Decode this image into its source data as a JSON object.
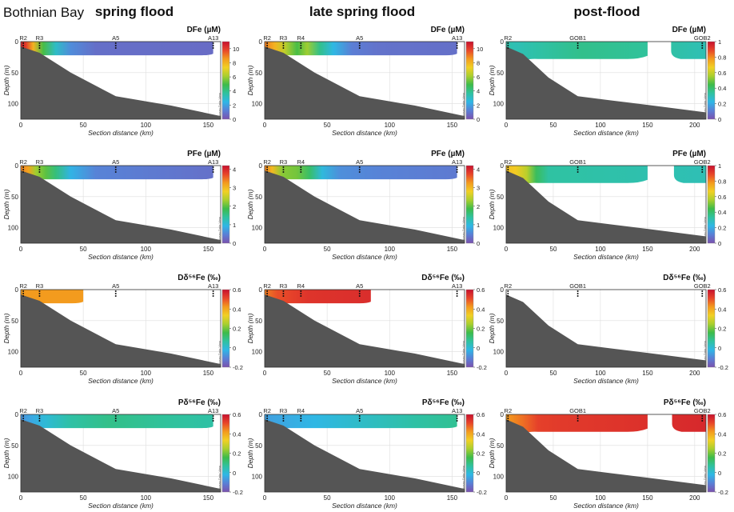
{
  "header": {
    "region": "Bothnian Bay",
    "columns": [
      "spring flood",
      "late spring flood",
      "post-flood"
    ]
  },
  "common": {
    "xlabel": "Section distance (km)",
    "ylabel": "Depth (m)",
    "watermark": "Ocean Data View"
  },
  "colors": {
    "colormap": [
      "#7b52ae",
      "#5a7fd6",
      "#2fb7e6",
      "#2fc2a0",
      "#3dbb4a",
      "#a9cf2e",
      "#f2d024",
      "#f39a1e",
      "#e8452a",
      "#c8102e"
    ],
    "seafloor": "#555555",
    "frame": "#333333",
    "grid": "#dddddd"
  },
  "chart_data": [
    {
      "type": "heatmap",
      "panel": "spring-DFe",
      "title": "DFe (µM)",
      "xlim": [
        0,
        160
      ],
      "ylim": [
        0,
        125
      ],
      "xticks": [
        0,
        50,
        100,
        150
      ],
      "yticks": [
        0,
        50,
        100
      ],
      "stations": [
        {
          "name": "R2",
          "x": 2
        },
        {
          "name": "R3",
          "x": 15
        },
        {
          "name": "A5",
          "x": 76
        },
        {
          "name": "A13",
          "x": 154
        }
      ],
      "colorbar": {
        "min": 0,
        "max": 11,
        "ticks": [
          0,
          2,
          4,
          6,
          8,
          10
        ]
      },
      "seafloor": [
        [
          0,
          8
        ],
        [
          15,
          18
        ],
        [
          40,
          50
        ],
        [
          76,
          88
        ],
        [
          120,
          103
        ],
        [
          160,
          120
        ]
      ],
      "surface_layer": {
        "depth": 22,
        "x_end": 154
      },
      "gradient": [
        [
          0,
          10.5
        ],
        [
          4,
          10
        ],
        [
          10,
          8
        ],
        [
          18,
          5
        ],
        [
          28,
          3
        ],
        [
          40,
          1.5
        ],
        [
          60,
          0.8
        ],
        [
          160,
          0.7
        ]
      ]
    },
    {
      "type": "heatmap",
      "panel": "late-DFe",
      "title": "DFe (µM)",
      "xlim": [
        0,
        160
      ],
      "ylim": [
        0,
        125
      ],
      "xticks": [
        0,
        50,
        100,
        150
      ],
      "yticks": [
        0,
        50,
        100
      ],
      "stations": [
        {
          "name": "R2",
          "x": 2
        },
        {
          "name": "R3",
          "x": 15
        },
        {
          "name": "R4",
          "x": 29
        },
        {
          "name": "A5",
          "x": 76
        },
        {
          "name": "A13",
          "x": 154
        }
      ],
      "colorbar": {
        "min": 0,
        "max": 11,
        "ticks": [
          0,
          2,
          4,
          6,
          8,
          10
        ]
      },
      "seafloor": [
        [
          0,
          8
        ],
        [
          15,
          18
        ],
        [
          40,
          50
        ],
        [
          76,
          88
        ],
        [
          120,
          103
        ],
        [
          160,
          120
        ]
      ],
      "surface_layer": {
        "depth": 22,
        "x_end": 154
      },
      "gradient": [
        [
          0,
          9
        ],
        [
          8,
          8
        ],
        [
          16,
          6.5
        ],
        [
          26,
          5
        ],
        [
          34,
          6
        ],
        [
          44,
          4
        ],
        [
          55,
          2.5
        ],
        [
          70,
          1.2
        ],
        [
          90,
          0.9
        ],
        [
          160,
          0.8
        ]
      ]
    },
    {
      "type": "heatmap",
      "panel": "post-DFe",
      "title": "DFe (µM)",
      "xlim": [
        0,
        212
      ],
      "ylim": [
        0,
        125
      ],
      "xticks": [
        0,
        50,
        100,
        150,
        200
      ],
      "yticks": [
        0,
        50,
        100
      ],
      "stations": [
        {
          "name": "R2",
          "x": 2
        },
        {
          "name": "GOB1",
          "x": 76
        },
        {
          "name": "GOB2",
          "x": 208
        }
      ],
      "colorbar": {
        "min": 0,
        "max": 1,
        "ticks": [
          0,
          0.2,
          0.4,
          0.6,
          0.8,
          1.0
        ]
      },
      "seafloor": [
        [
          0,
          8
        ],
        [
          18,
          20
        ],
        [
          45,
          58
        ],
        [
          76,
          88
        ],
        [
          150,
          102
        ],
        [
          212,
          114
        ]
      ],
      "surface_layer": {
        "depth": 28,
        "gap": [
          150,
          175
        ],
        "x_end": 212
      },
      "gradient": [
        [
          0,
          0.32
        ],
        [
          10,
          0.3
        ],
        [
          30,
          0.32
        ],
        [
          80,
          0.36
        ],
        [
          150,
          0.34
        ],
        [
          212,
          0.3
        ]
      ]
    },
    {
      "type": "heatmap",
      "panel": "spring-PFe",
      "title": "PFe (µM)",
      "xlim": [
        0,
        160
      ],
      "ylim": [
        0,
        125
      ],
      "xticks": [
        0,
        50,
        100,
        150
      ],
      "yticks": [
        0,
        50,
        100
      ],
      "stations": [
        {
          "name": "R2",
          "x": 2
        },
        {
          "name": "R3",
          "x": 15
        },
        {
          "name": "A5",
          "x": 76
        },
        {
          "name": "A13",
          "x": 154
        }
      ],
      "colorbar": {
        "min": 0,
        "max": 4.2,
        "ticks": [
          0,
          1,
          2,
          3,
          4
        ]
      },
      "seafloor": [
        [
          0,
          8
        ],
        [
          15,
          18
        ],
        [
          40,
          50
        ],
        [
          76,
          88
        ],
        [
          120,
          103
        ],
        [
          160,
          120
        ]
      ],
      "surface_layer": {
        "depth": 22,
        "x_end": 154
      },
      "gradient": [
        [
          0,
          3.4
        ],
        [
          6,
          3.2
        ],
        [
          12,
          2.3
        ],
        [
          20,
          2.0
        ],
        [
          28,
          1.6
        ],
        [
          40,
          0.9
        ],
        [
          60,
          0.5
        ],
        [
          160,
          0.3
        ]
      ]
    },
    {
      "type": "heatmap",
      "panel": "late-PFe",
      "title": "PFe (µM)",
      "xlim": [
        0,
        160
      ],
      "ylim": [
        0,
        125
      ],
      "xticks": [
        0,
        50,
        100,
        150
      ],
      "yticks": [
        0,
        50,
        100
      ],
      "stations": [
        {
          "name": "R2",
          "x": 2
        },
        {
          "name": "R3",
          "x": 15
        },
        {
          "name": "R4",
          "x": 29
        },
        {
          "name": "A5",
          "x": 76
        },
        {
          "name": "A13",
          "x": 154
        }
      ],
      "colorbar": {
        "min": 0,
        "max": 4.2,
        "ticks": [
          0,
          1,
          2,
          3,
          4
        ]
      },
      "seafloor": [
        [
          0,
          8
        ],
        [
          15,
          18
        ],
        [
          40,
          50
        ],
        [
          76,
          88
        ],
        [
          120,
          103
        ],
        [
          160,
          120
        ]
      ],
      "surface_layer": {
        "depth": 22,
        "x_end": 154
      },
      "gradient": [
        [
          0,
          3.4
        ],
        [
          6,
          3.0
        ],
        [
          14,
          2.2
        ],
        [
          26,
          2.1
        ],
        [
          36,
          1.7
        ],
        [
          46,
          1.0
        ],
        [
          60,
          0.6
        ],
        [
          90,
          0.5
        ],
        [
          160,
          0.4
        ]
      ]
    },
    {
      "type": "heatmap",
      "panel": "post-PFe",
      "title": "PFe (µM)",
      "xlim": [
        0,
        212
      ],
      "ylim": [
        0,
        125
      ],
      "xticks": [
        0,
        50,
        100,
        150,
        200
      ],
      "yticks": [
        0,
        50,
        100
      ],
      "stations": [
        {
          "name": "R2",
          "x": 2
        },
        {
          "name": "GOB1",
          "x": 76
        },
        {
          "name": "GOB2",
          "x": 208
        }
      ],
      "colorbar": {
        "min": 0,
        "max": 1,
        "ticks": [
          0,
          0.2,
          0.4,
          0.6,
          0.8,
          1.0
        ]
      },
      "seafloor": [
        [
          0,
          8
        ],
        [
          18,
          20
        ],
        [
          45,
          58
        ],
        [
          76,
          88
        ],
        [
          150,
          102
        ],
        [
          212,
          114
        ]
      ],
      "surface_layer": {
        "depth": 28,
        "gap": [
          150,
          178
        ],
        "x_end": 212
      },
      "gradient": [
        [
          0,
          0.7
        ],
        [
          10,
          0.68
        ],
        [
          22,
          0.58
        ],
        [
          32,
          0.42
        ],
        [
          45,
          0.33
        ],
        [
          212,
          0.3
        ]
      ]
    },
    {
      "type": "heatmap",
      "panel": "spring-Dd56Fe",
      "title": "Dδ⁵⁶Fe (‰)",
      "xlim": [
        0,
        160
      ],
      "ylim": [
        0,
        125
      ],
      "xticks": [
        0,
        50,
        100,
        150
      ],
      "yticks": [
        0,
        50,
        100
      ],
      "stations": [
        {
          "name": "R2",
          "x": 2
        },
        {
          "name": "R3",
          "x": 15
        },
        {
          "name": "A5",
          "x": 76
        },
        {
          "name": "A13",
          "x": 154
        }
      ],
      "colorbar": {
        "min": -0.2,
        "max": 0.6,
        "ticks": [
          -0.2,
          0,
          0.2,
          0.4,
          0.6
        ]
      },
      "seafloor": [
        [
          0,
          8
        ],
        [
          15,
          18
        ],
        [
          40,
          50
        ],
        [
          76,
          88
        ],
        [
          120,
          103
        ],
        [
          160,
          120
        ]
      ],
      "surface_layer": {
        "depth": 22,
        "x_end": 50
      },
      "gradient": [
        [
          0,
          0.42
        ],
        [
          50,
          0.42
        ]
      ]
    },
    {
      "type": "heatmap",
      "panel": "late-Dd56Fe",
      "title": "Dδ⁵⁶Fe (‰)",
      "xlim": [
        0,
        160
      ],
      "ylim": [
        0,
        125
      ],
      "xticks": [
        0,
        50,
        100,
        150
      ],
      "yticks": [
        0,
        50,
        100
      ],
      "stations": [
        {
          "name": "R2",
          "x": 2
        },
        {
          "name": "R3",
          "x": 15
        },
        {
          "name": "R4",
          "x": 29
        },
        {
          "name": "A5",
          "x": 76
        },
        {
          "name": "A13",
          "x": 154
        }
      ],
      "colorbar": {
        "min": -0.2,
        "max": 0.6,
        "ticks": [
          -0.2,
          0,
          0.2,
          0.4,
          0.6
        ]
      },
      "seafloor": [
        [
          0,
          8
        ],
        [
          15,
          18
        ],
        [
          40,
          50
        ],
        [
          76,
          88
        ],
        [
          120,
          103
        ],
        [
          160,
          120
        ]
      ],
      "surface_layer": {
        "depth": 22,
        "x_end": 85
      },
      "gradient": [
        [
          0,
          0.45
        ],
        [
          10,
          0.5
        ],
        [
          22,
          0.52
        ],
        [
          35,
          0.54
        ],
        [
          85,
          0.55
        ]
      ]
    },
    {
      "type": "heatmap",
      "panel": "post-Dd56Fe",
      "title": "Dδ⁵⁶Fe (‰)",
      "xlim": [
        0,
        212
      ],
      "ylim": [
        0,
        125
      ],
      "xticks": [
        0,
        50,
        100,
        150,
        200
      ],
      "yticks": [
        0,
        50,
        100
      ],
      "stations": [
        {
          "name": "R2",
          "x": 2
        },
        {
          "name": "GOB1",
          "x": 76
        },
        {
          "name": "GOB2",
          "x": 208
        }
      ],
      "colorbar": {
        "min": -0.2,
        "max": 0.6,
        "ticks": [
          -0.2,
          0,
          0.2,
          0.4,
          0.6
        ]
      },
      "seafloor": [
        [
          0,
          8
        ],
        [
          18,
          20
        ],
        [
          45,
          58
        ],
        [
          76,
          88
        ],
        [
          150,
          102
        ],
        [
          212,
          114
        ]
      ],
      "surface_layer": null,
      "gradient": []
    },
    {
      "type": "heatmap",
      "panel": "spring-Pd56Fe",
      "title": "Pδ⁵⁶Fe (‰)",
      "xlim": [
        0,
        160
      ],
      "ylim": [
        0,
        125
      ],
      "xticks": [
        0,
        50,
        100,
        150
      ],
      "yticks": [
        0,
        50,
        100
      ],
      "stations": [
        {
          "name": "R2",
          "x": 2
        },
        {
          "name": "R3",
          "x": 15
        },
        {
          "name": "A5",
          "x": 76
        },
        {
          "name": "A13",
          "x": 154
        }
      ],
      "colorbar": {
        "min": -0.2,
        "max": 0.6,
        "ticks": [
          -0.2,
          0,
          0.2,
          0.4,
          0.6
        ]
      },
      "seafloor": [
        [
          0,
          8
        ],
        [
          15,
          18
        ],
        [
          40,
          50
        ],
        [
          76,
          88
        ],
        [
          120,
          103
        ],
        [
          160,
          120
        ]
      ],
      "surface_layer": {
        "depth": 22,
        "x_end": 154
      },
      "gradient": [
        [
          0,
          -0.08
        ],
        [
          10,
          -0.04
        ],
        [
          20,
          0.0
        ],
        [
          40,
          0.06
        ],
        [
          70,
          0.09
        ],
        [
          120,
          0.07
        ],
        [
          154,
          0.06
        ]
      ]
    },
    {
      "type": "heatmap",
      "panel": "late-Pd56Fe",
      "title": "Pδ⁵⁶Fe (‰)",
      "xlim": [
        0,
        160
      ],
      "ylim": [
        0,
        125
      ],
      "xticks": [
        0,
        50,
        100,
        150
      ],
      "yticks": [
        0,
        50,
        100
      ],
      "stations": [
        {
          "name": "R2",
          "x": 2
        },
        {
          "name": "R3",
          "x": 15
        },
        {
          "name": "R4",
          "x": 29
        },
        {
          "name": "A5",
          "x": 76
        },
        {
          "name": "A13",
          "x": 154
        }
      ],
      "colorbar": {
        "min": -0.2,
        "max": 0.6,
        "ticks": [
          -0.2,
          0,
          0.2,
          0.4,
          0.6
        ]
      },
      "seafloor": [
        [
          0,
          8
        ],
        [
          15,
          18
        ],
        [
          40,
          50
        ],
        [
          76,
          88
        ],
        [
          120,
          103
        ],
        [
          160,
          120
        ]
      ],
      "surface_layer": {
        "depth": 22,
        "x_end": 154
      },
      "gradient": [
        [
          0,
          -0.06
        ],
        [
          20,
          -0.04
        ],
        [
          40,
          -0.02
        ],
        [
          80,
          0.02
        ],
        [
          120,
          0.06
        ],
        [
          154,
          0.08
        ]
      ]
    },
    {
      "type": "heatmap",
      "panel": "post-Pd56Fe",
      "title": "Pδ⁵⁶Fe (‰)",
      "xlim": [
        0,
        212
      ],
      "ylim": [
        0,
        125
      ],
      "xticks": [
        0,
        50,
        100,
        150,
        200
      ],
      "yticks": [
        0,
        50,
        100
      ],
      "stations": [
        {
          "name": "R2",
          "x": 2
        },
        {
          "name": "GOB1",
          "x": 76
        },
        {
          "name": "GOB2",
          "x": 208
        }
      ],
      "colorbar": {
        "min": -0.2,
        "max": 0.6,
        "ticks": [
          -0.2,
          0,
          0.2,
          0.4,
          0.6
        ]
      },
      "seafloor": [
        [
          0,
          8
        ],
        [
          18,
          20
        ],
        [
          45,
          58
        ],
        [
          76,
          88
        ],
        [
          150,
          102
        ],
        [
          212,
          114
        ]
      ],
      "surface_layer": {
        "depth": 28,
        "gap": [
          150,
          176
        ],
        "x_end": 212
      },
      "gradient": [
        [
          0,
          0.42
        ],
        [
          8,
          0.44
        ],
        [
          22,
          0.48
        ],
        [
          34,
          0.52
        ],
        [
          60,
          0.53
        ],
        [
          120,
          0.54
        ],
        [
          212,
          0.56
        ]
      ]
    }
  ]
}
